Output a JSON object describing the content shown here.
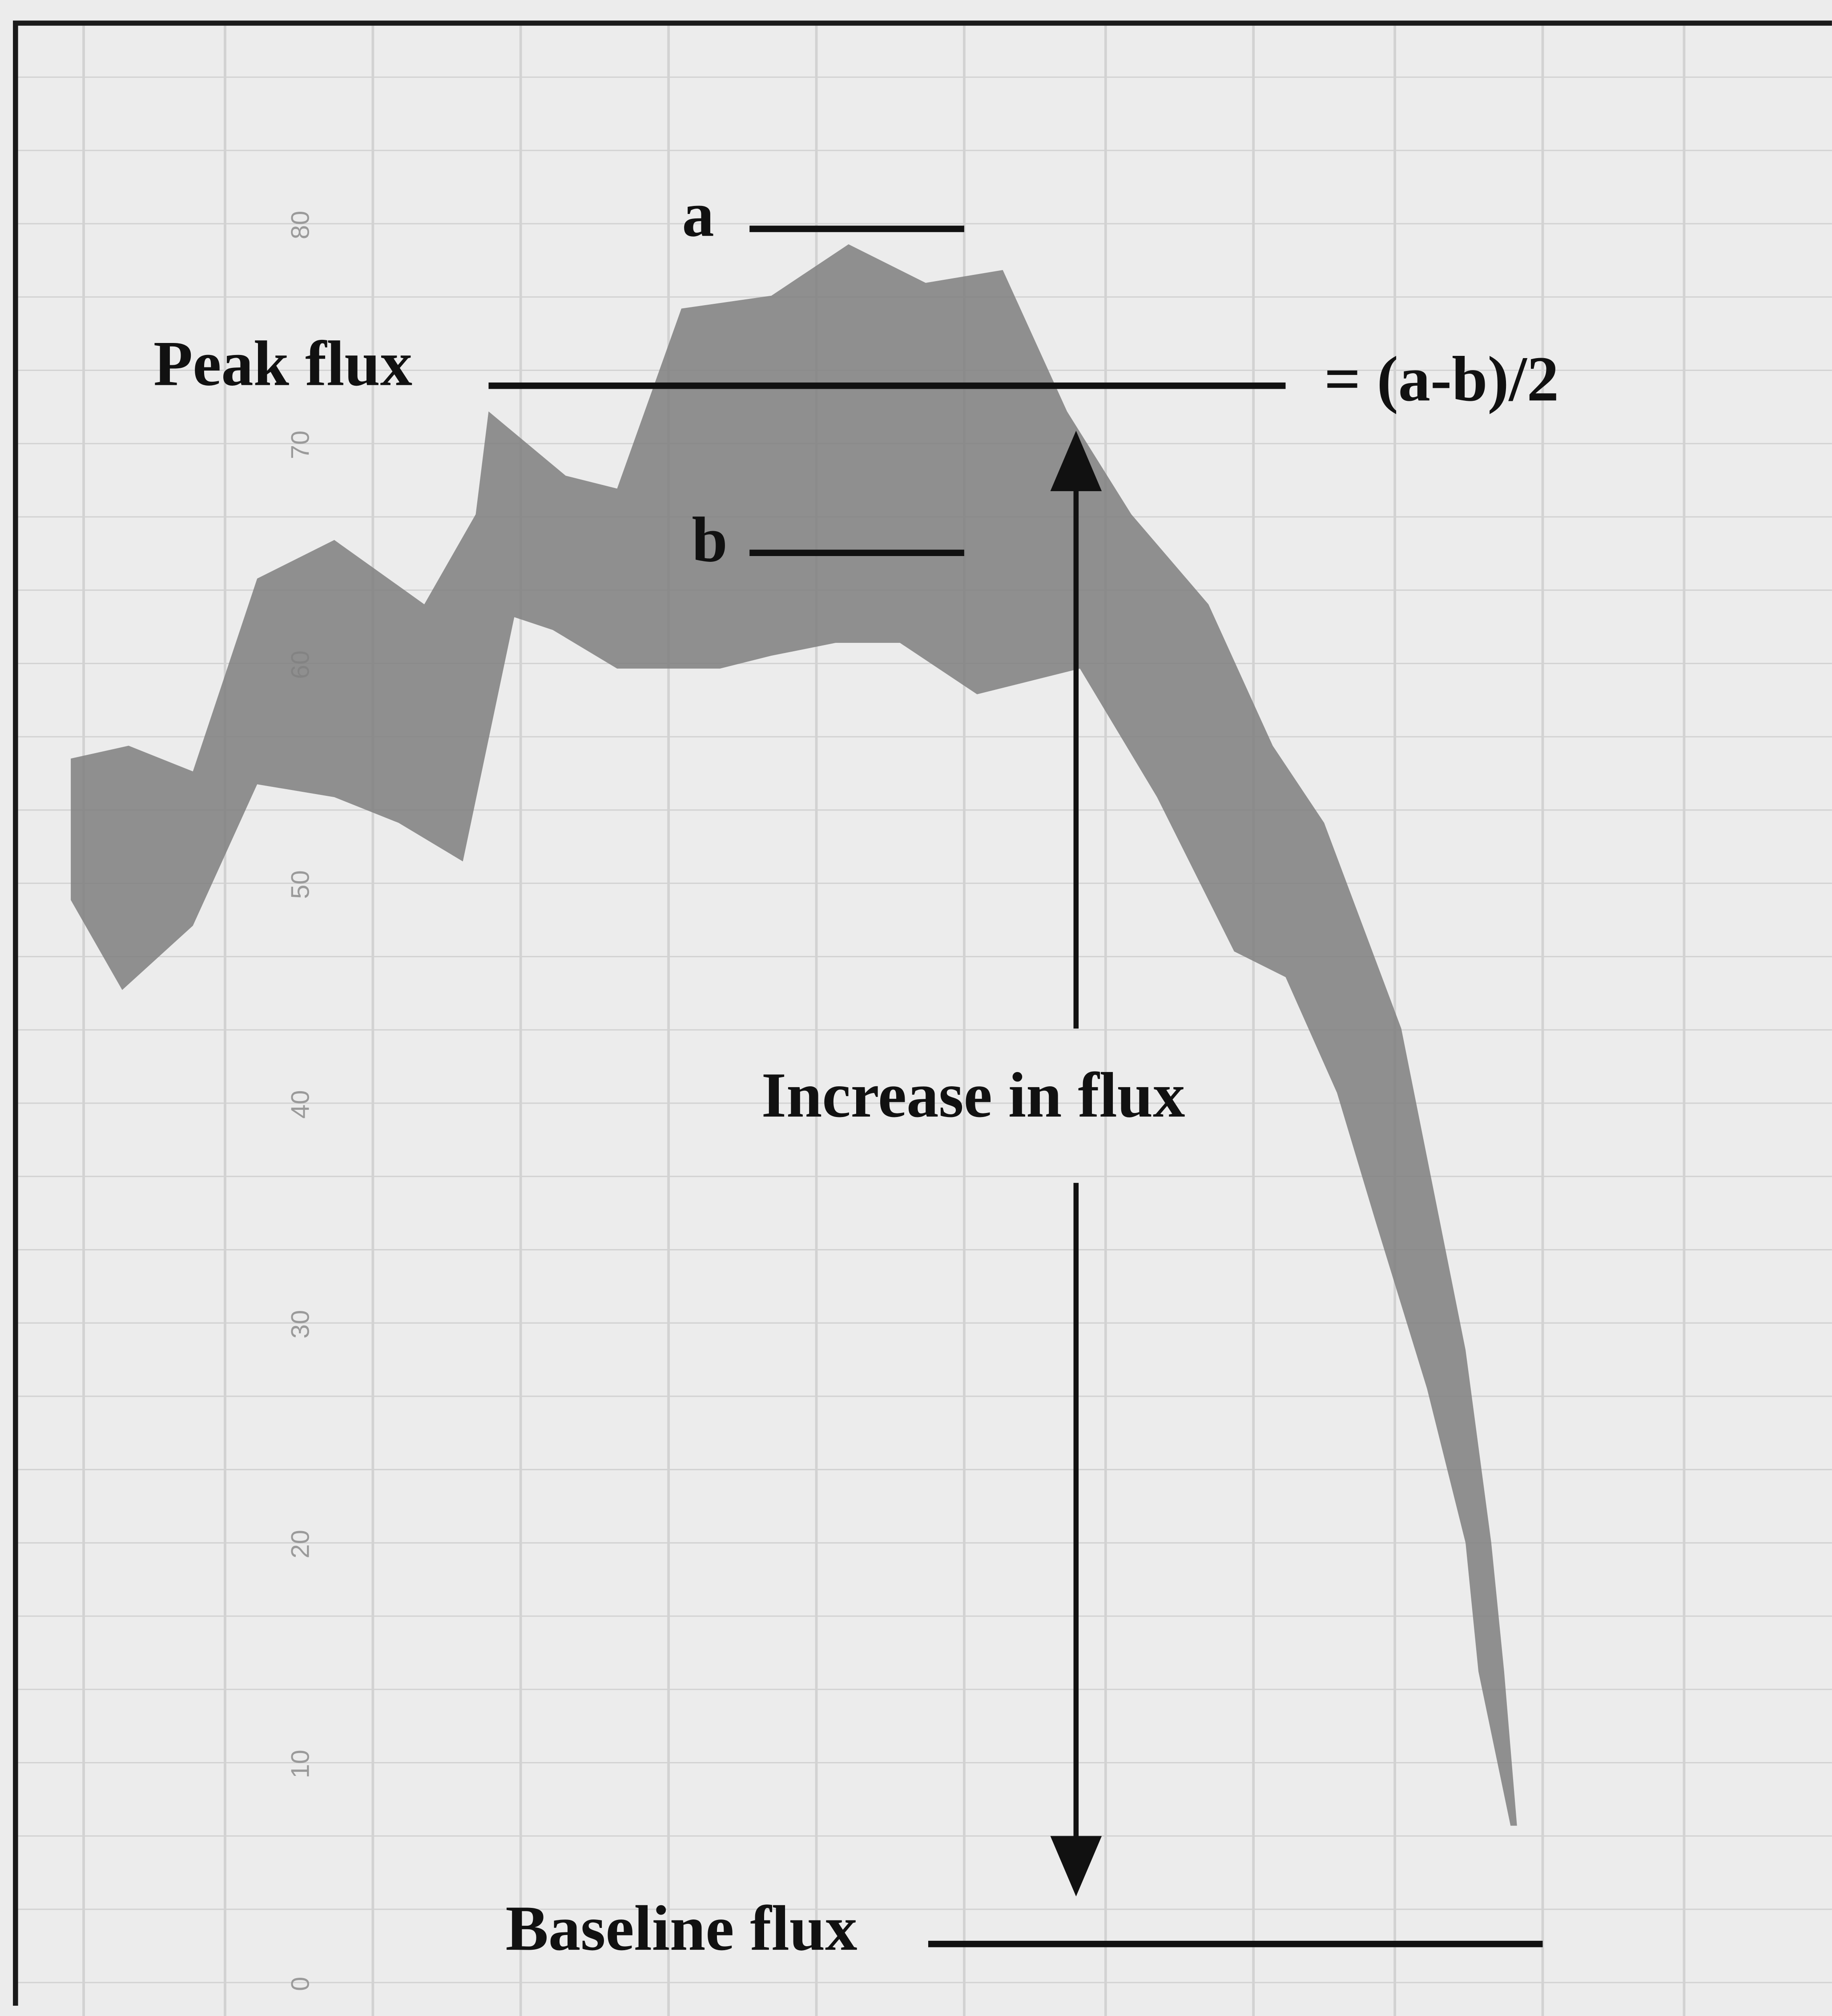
{
  "labels": {
    "a": "a",
    "b": "b",
    "peak": "Peak flux",
    "formula": "= (a-b)/2",
    "increase": "Increase in flux",
    "baseline": "Baseline flux"
  },
  "axis": {
    "ticks": [
      "80",
      "70",
      "60",
      "50",
      "40",
      "30",
      "20",
      "10",
      "0"
    ]
  }
}
